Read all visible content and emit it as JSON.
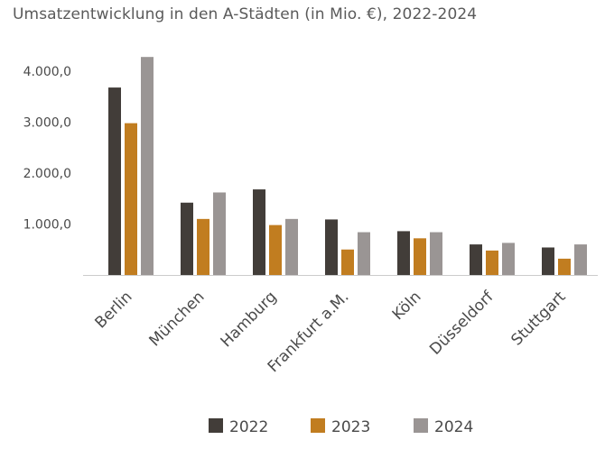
{
  "chart_data": {
    "type": "bar",
    "title": "Umsatzentwicklung in den A-Städten (in Mio. €), 2022-2024",
    "xlabel": "",
    "ylabel": "",
    "categories": [
      "Berlin",
      "München",
      "Hamburg",
      "Frankfurt a.M.",
      "Köln",
      "Düsseldorf",
      "Stuttgart"
    ],
    "series": [
      {
        "name": "2022",
        "values": [
          3680,
          1420,
          1680,
          1090,
          860,
          600,
          540
        ]
      },
      {
        "name": "2023",
        "values": [
          2980,
          1100,
          980,
          500,
          720,
          480,
          320
        ]
      },
      {
        "name": "2024",
        "values": [
          4280,
          1620,
          1100,
          840,
          840,
          630,
          600
        ]
      }
    ],
    "ylim": [
      0,
      4400
    ],
    "yticks": [
      {
        "value": 1000,
        "label": "1.000,0"
      },
      {
        "value": 2000,
        "label": "2.000,0"
      },
      {
        "value": 3000,
        "label": "3.000,0"
      },
      {
        "value": 4000,
        "label": "4.000,0"
      }
    ],
    "grid": false,
    "legend_position": "bottom-center",
    "colors": {
      "2022": "#423d39",
      "2023": "#c17d20",
      "2024": "#9a9594",
      "axis": "#cccccc",
      "text": "#4a4a4a"
    }
  }
}
